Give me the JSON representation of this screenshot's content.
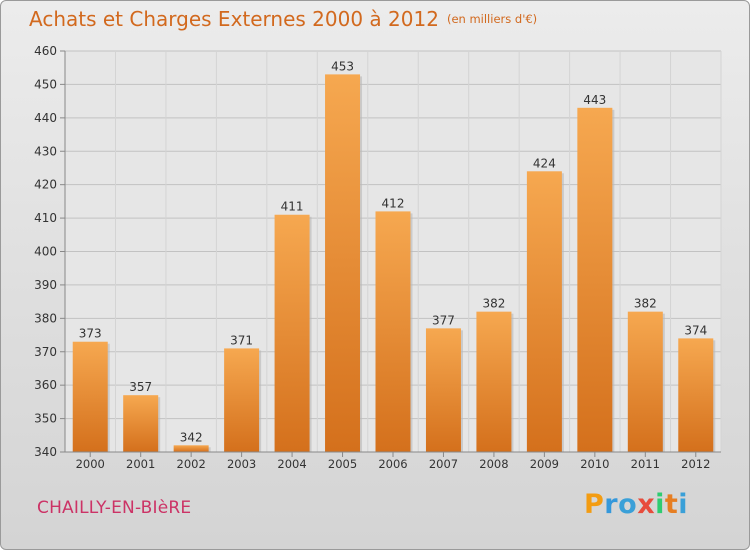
{
  "header": {
    "title": "Achats et Charges Externes 2000 à 2012",
    "subtitle": "(en milliers d'€)"
  },
  "location": "CHAILLY-EN-BIèRE",
  "brand": {
    "letters": [
      "P",
      "r",
      "o",
      "x",
      "i",
      "t",
      "i"
    ],
    "colors": [
      "#f39c12",
      "#3498db",
      "#3aa0d8",
      "#e74c3c",
      "#2ecc71",
      "#e67e22",
      "#3aa0d8"
    ]
  },
  "chart_data": {
    "type": "bar",
    "categories": [
      "2000",
      "2001",
      "2002",
      "2003",
      "2004",
      "2005",
      "2006",
      "2007",
      "2008",
      "2009",
      "2010",
      "2011",
      "2012"
    ],
    "values": [
      373,
      357,
      342,
      371,
      411,
      453,
      412,
      377,
      382,
      424,
      443,
      382,
      374
    ],
    "ylim": [
      340,
      460
    ],
    "yticks": [
      340,
      350,
      360,
      370,
      380,
      390,
      400,
      410,
      420,
      430,
      440,
      450,
      460
    ],
    "grid": true,
    "bar_color": "#e8852e"
  }
}
